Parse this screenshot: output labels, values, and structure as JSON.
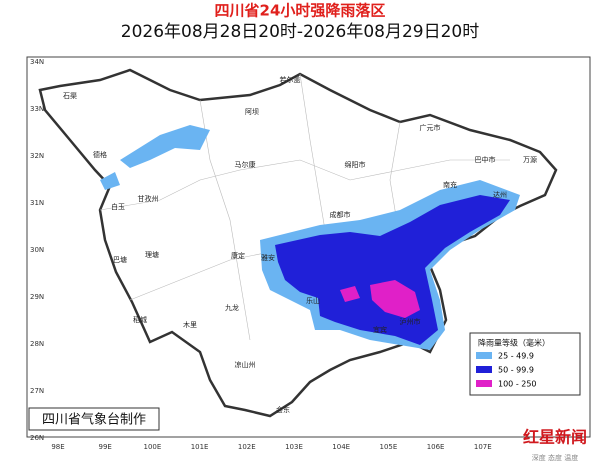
{
  "title": "四川省24小时强降雨落区",
  "subtitle": "2026年08月28日20时-2026年08月29日20时",
  "lat_labels": [
    "34N",
    "33N",
    "32N",
    "31N",
    "30N",
    "29N",
    "28N",
    "27N",
    "26N"
  ],
  "lon_labels": [
    "98E",
    "99E",
    "100E",
    "101E",
    "102E",
    "103E",
    "104E",
    "105E",
    "106E",
    "107E"
  ],
  "places": [
    {
      "label": "石渠"
    },
    {
      "label": "德格"
    },
    {
      "label": "甘孜州"
    },
    {
      "label": "白玉"
    },
    {
      "label": "巴塘"
    },
    {
      "label": "理塘"
    },
    {
      "label": "稻城"
    },
    {
      "label": "木里"
    },
    {
      "label": "九龙"
    },
    {
      "label": "康定"
    },
    {
      "label": "雅安"
    },
    {
      "label": "乐山"
    },
    {
      "label": "成都市"
    },
    {
      "label": "绵阳市"
    },
    {
      "label": "广元市"
    },
    {
      "label": "巴中市"
    },
    {
      "label": "达州"
    },
    {
      "label": "南充"
    },
    {
      "label": "宜宾"
    },
    {
      "label": "泸州市"
    },
    {
      "label": "凉山州"
    },
    {
      "label": "会东"
    },
    {
      "label": "若尔盖"
    },
    {
      "label": "马尔康"
    },
    {
      "label": "阿坝"
    },
    {
      "label": "万源"
    }
  ],
  "legend": {
    "title": "降雨量等级（毫米）",
    "items": [
      "25 - 49.9",
      "50 - 99.9",
      "100 - 250"
    ]
  },
  "credit": "四川省气象台制作",
  "watermark": {
    "name": "红星新闻",
    "tagline": "深度 态度 温度"
  }
}
